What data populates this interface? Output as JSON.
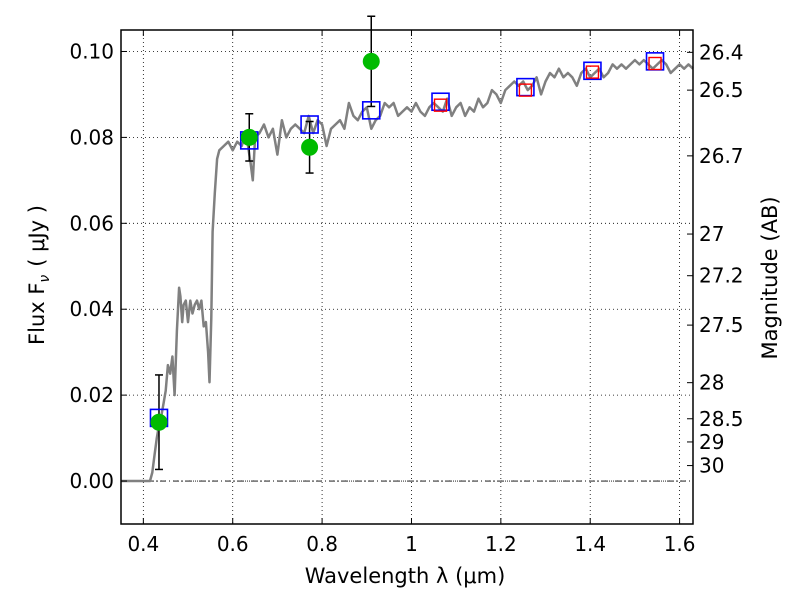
{
  "chart_data": {
    "type": "scatter",
    "xlabel": "Wavelength  λ (μm)",
    "ylabel": "Flux  F",
    "ylabel_subscript": "ν",
    "ylabel_unit": "( μJy )",
    "y2label": "Magnitude (AB)",
    "xlim": [
      0.35,
      1.63
    ],
    "ylim": [
      -0.01,
      0.105
    ],
    "x_ticks": [
      0.4,
      0.6,
      0.8,
      1.0,
      1.2,
      1.4,
      1.6
    ],
    "x_tick_labels": [
      "0.4",
      "0.6",
      "0.8",
      "1",
      "1.2",
      "1.4",
      "1.6"
    ],
    "y_ticks": [
      0.0,
      0.02,
      0.04,
      0.06,
      0.08,
      0.1
    ],
    "y_tick_labels": [
      "0.00",
      "0.02",
      "0.04",
      "0.06",
      "0.08",
      "0.10"
    ],
    "y2_ticks": [
      {
        "label": "26.4",
        "flux": 0.0998
      },
      {
        "label": "26.5",
        "flux": 0.091
      },
      {
        "label": "26.7",
        "flux": 0.0757
      },
      {
        "label": "27",
        "flux": 0.0575
      },
      {
        "label": "27.2",
        "flux": 0.0478
      },
      {
        "label": "27.5",
        "flux": 0.0363
      },
      {
        "label": "28",
        "flux": 0.0229
      },
      {
        "label": "28.5",
        "flux": 0.0145
      },
      {
        "label": "29",
        "flux": 0.0091
      },
      {
        "label": "30",
        "flux": 0.0036
      }
    ],
    "grid": true,
    "zero_line": true,
    "series": [
      {
        "kind": "line",
        "color": "#808080",
        "x": [
          0.35,
          0.4,
          0.415,
          0.42,
          0.425,
          0.43,
          0.435,
          0.44,
          0.445,
          0.45,
          0.455,
          0.46,
          0.465,
          0.47,
          0.475,
          0.48,
          0.483,
          0.487,
          0.49,
          0.495,
          0.5,
          0.505,
          0.51,
          0.515,
          0.52,
          0.525,
          0.53,
          0.535,
          0.54,
          0.545,
          0.548,
          0.552,
          0.555,
          0.56,
          0.565,
          0.57,
          0.58,
          0.59,
          0.6,
          0.61,
          0.62,
          0.63,
          0.64,
          0.645,
          0.65,
          0.66,
          0.67,
          0.68,
          0.69,
          0.7,
          0.71,
          0.72,
          0.73,
          0.74,
          0.75,
          0.76,
          0.77,
          0.78,
          0.79,
          0.8,
          0.81,
          0.82,
          0.83,
          0.84,
          0.85,
          0.86,
          0.87,
          0.88,
          0.89,
          0.9,
          0.91,
          0.92,
          0.93,
          0.94,
          0.95,
          0.96,
          0.97,
          0.98,
          0.99,
          1.0,
          1.01,
          1.02,
          1.03,
          1.04,
          1.05,
          1.06,
          1.07,
          1.08,
          1.09,
          1.1,
          1.11,
          1.12,
          1.13,
          1.14,
          1.15,
          1.16,
          1.17,
          1.18,
          1.19,
          1.2,
          1.21,
          1.22,
          1.23,
          1.24,
          1.25,
          1.26,
          1.27,
          1.28,
          1.29,
          1.3,
          1.31,
          1.32,
          1.33,
          1.34,
          1.35,
          1.36,
          1.37,
          1.38,
          1.39,
          1.4,
          1.41,
          1.42,
          1.43,
          1.44,
          1.45,
          1.46,
          1.47,
          1.48,
          1.49,
          1.5,
          1.51,
          1.52,
          1.53,
          1.54,
          1.55,
          1.56,
          1.57,
          1.58,
          1.59,
          1.6,
          1.61,
          1.62,
          1.63
        ],
        "y": [
          0.0,
          0.0,
          0.0,
          0.002,
          0.006,
          0.01,
          0.013,
          0.015,
          0.018,
          0.021,
          0.027,
          0.025,
          0.029,
          0.02,
          0.035,
          0.045,
          0.043,
          0.037,
          0.041,
          0.042,
          0.037,
          0.042,
          0.039,
          0.041,
          0.042,
          0.04,
          0.042,
          0.036,
          0.037,
          0.03,
          0.023,
          0.038,
          0.058,
          0.067,
          0.075,
          0.077,
          0.078,
          0.079,
          0.077,
          0.079,
          0.078,
          0.081,
          0.074,
          0.07,
          0.08,
          0.081,
          0.083,
          0.08,
          0.082,
          0.076,
          0.084,
          0.08,
          0.082,
          0.083,
          0.082,
          0.081,
          0.085,
          0.081,
          0.084,
          0.083,
          0.078,
          0.082,
          0.083,
          0.084,
          0.082,
          0.088,
          0.085,
          0.084,
          0.086,
          0.087,
          0.082,
          0.084,
          0.085,
          0.088,
          0.087,
          0.088,
          0.085,
          0.086,
          0.087,
          0.086,
          0.088,
          0.086,
          0.085,
          0.087,
          0.088,
          0.087,
          0.086,
          0.089,
          0.085,
          0.087,
          0.088,
          0.085,
          0.087,
          0.086,
          0.089,
          0.087,
          0.088,
          0.091,
          0.09,
          0.088,
          0.091,
          0.092,
          0.093,
          0.092,
          0.093,
          0.091,
          0.092,
          0.094,
          0.09,
          0.093,
          0.095,
          0.094,
          0.096,
          0.094,
          0.095,
          0.094,
          0.092,
          0.095,
          0.096,
          0.094,
          0.095,
          0.096,
          0.094,
          0.095,
          0.097,
          0.096,
          0.097,
          0.096,
          0.097,
          0.098,
          0.097,
          0.098,
          0.097,
          0.096,
          0.097,
          0.098,
          0.097,
          0.095,
          0.096,
          0.097,
          0.096,
          0.097,
          0.096
        ]
      },
      {
        "kind": "points",
        "name": "observed",
        "color": "#00bb00",
        "marker": "circle",
        "points": [
          {
            "x": 0.435,
            "y": 0.0137,
            "err": 0.011
          },
          {
            "x": 0.637,
            "y": 0.08,
            "err": 0.0055
          },
          {
            "x": 0.772,
            "y": 0.0777,
            "err": 0.006
          },
          {
            "x": 0.91,
            "y": 0.0977,
            "err": 0.0105
          }
        ]
      },
      {
        "kind": "points",
        "name": "model_bands",
        "color": "#0000ff",
        "marker": "square",
        "points": [
          {
            "x": 0.435,
            "y": 0.0147
          },
          {
            "x": 0.637,
            "y": 0.0793
          },
          {
            "x": 0.772,
            "y": 0.083
          },
          {
            "x": 0.91,
            "y": 0.0863
          },
          {
            "x": 1.065,
            "y": 0.0883
          },
          {
            "x": 1.255,
            "y": 0.0917
          },
          {
            "x": 1.405,
            "y": 0.0955
          },
          {
            "x": 1.545,
            "y": 0.0977
          }
        ]
      },
      {
        "kind": "points",
        "name": "model_nir",
        "color": "#ff0000",
        "marker": "square-small",
        "points": [
          {
            "x": 1.065,
            "y": 0.0875
          },
          {
            "x": 1.255,
            "y": 0.091
          },
          {
            "x": 1.405,
            "y": 0.0952
          },
          {
            "x": 1.545,
            "y": 0.0972
          }
        ]
      }
    ]
  }
}
